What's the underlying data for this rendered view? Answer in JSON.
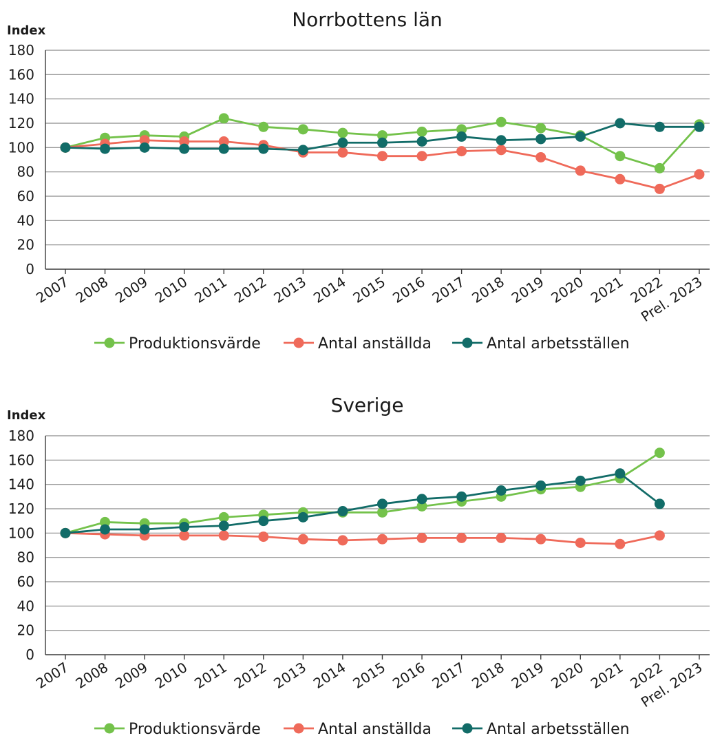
{
  "chart_data": [
    {
      "type": "line",
      "title": "Norrbottens län",
      "ylabel": "Index",
      "xlabel": "",
      "ylim": [
        0,
        180
      ],
      "yticks": [
        0,
        20,
        40,
        60,
        80,
        100,
        120,
        140,
        160,
        180
      ],
      "grid": true,
      "legend_position": "bottom",
      "categories": [
        "2007",
        "2008",
        "2009",
        "2010",
        "2011",
        "2012",
        "2013",
        "2014",
        "2015",
        "2016",
        "2017",
        "2018",
        "2019",
        "2020",
        "2021",
        "2022",
        "Prel. 2023"
      ],
      "series": [
        {
          "name": "Produktionsvärde",
          "color": "#74c24b",
          "values": [
            100,
            108,
            110,
            109,
            124,
            117,
            115,
            112,
            110,
            113,
            115,
            121,
            116,
            110,
            93,
            83,
            119
          ]
        },
        {
          "name": "Antal anställda",
          "color": "#ef6a5a",
          "values": [
            100,
            103,
            106,
            105,
            105,
            102,
            96,
            96,
            93,
            93,
            97,
            98,
            92,
            81,
            74,
            66,
            78
          ]
        },
        {
          "name": "Antal arbetsställen",
          "color": "#126c68",
          "values": [
            100,
            99,
            100,
            99,
            99,
            99,
            98,
            104,
            104,
            105,
            109,
            106,
            107,
            109,
            120,
            117,
            117
          ]
        }
      ]
    },
    {
      "type": "line",
      "title": "Sverige",
      "ylabel": "Index",
      "xlabel": "",
      "ylim": [
        0,
        180
      ],
      "yticks": [
        0,
        20,
        40,
        60,
        80,
        100,
        120,
        140,
        160,
        180
      ],
      "grid": true,
      "legend_position": "bottom",
      "categories": [
        "2007",
        "2008",
        "2009",
        "2010",
        "2011",
        "2012",
        "2013",
        "2014",
        "2015",
        "2016",
        "2017",
        "2018",
        "2019",
        "2020",
        "2021",
        "2022",
        "Prel. 2023"
      ],
      "series": [
        {
          "name": "Produktionsvärde",
          "color": "#74c24b",
          "values": [
            100,
            109,
            108,
            108,
            113,
            115,
            117,
            117,
            117,
            122,
            126,
            130,
            136,
            138,
            145,
            166,
            null
          ]
        },
        {
          "name": "Antal anställda",
          "color": "#ef6a5a",
          "values": [
            100,
            99,
            98,
            98,
            98,
            97,
            95,
            94,
            95,
            96,
            96,
            96,
            95,
            92,
            91,
            98,
            null
          ]
        },
        {
          "name": "Antal arbetsställen",
          "color": "#126c68",
          "values": [
            100,
            103,
            103,
            105,
            106,
            110,
            113,
            118,
            124,
            128,
            130,
            135,
            139,
            143,
            149,
            124,
            null
          ]
        }
      ]
    }
  ]
}
